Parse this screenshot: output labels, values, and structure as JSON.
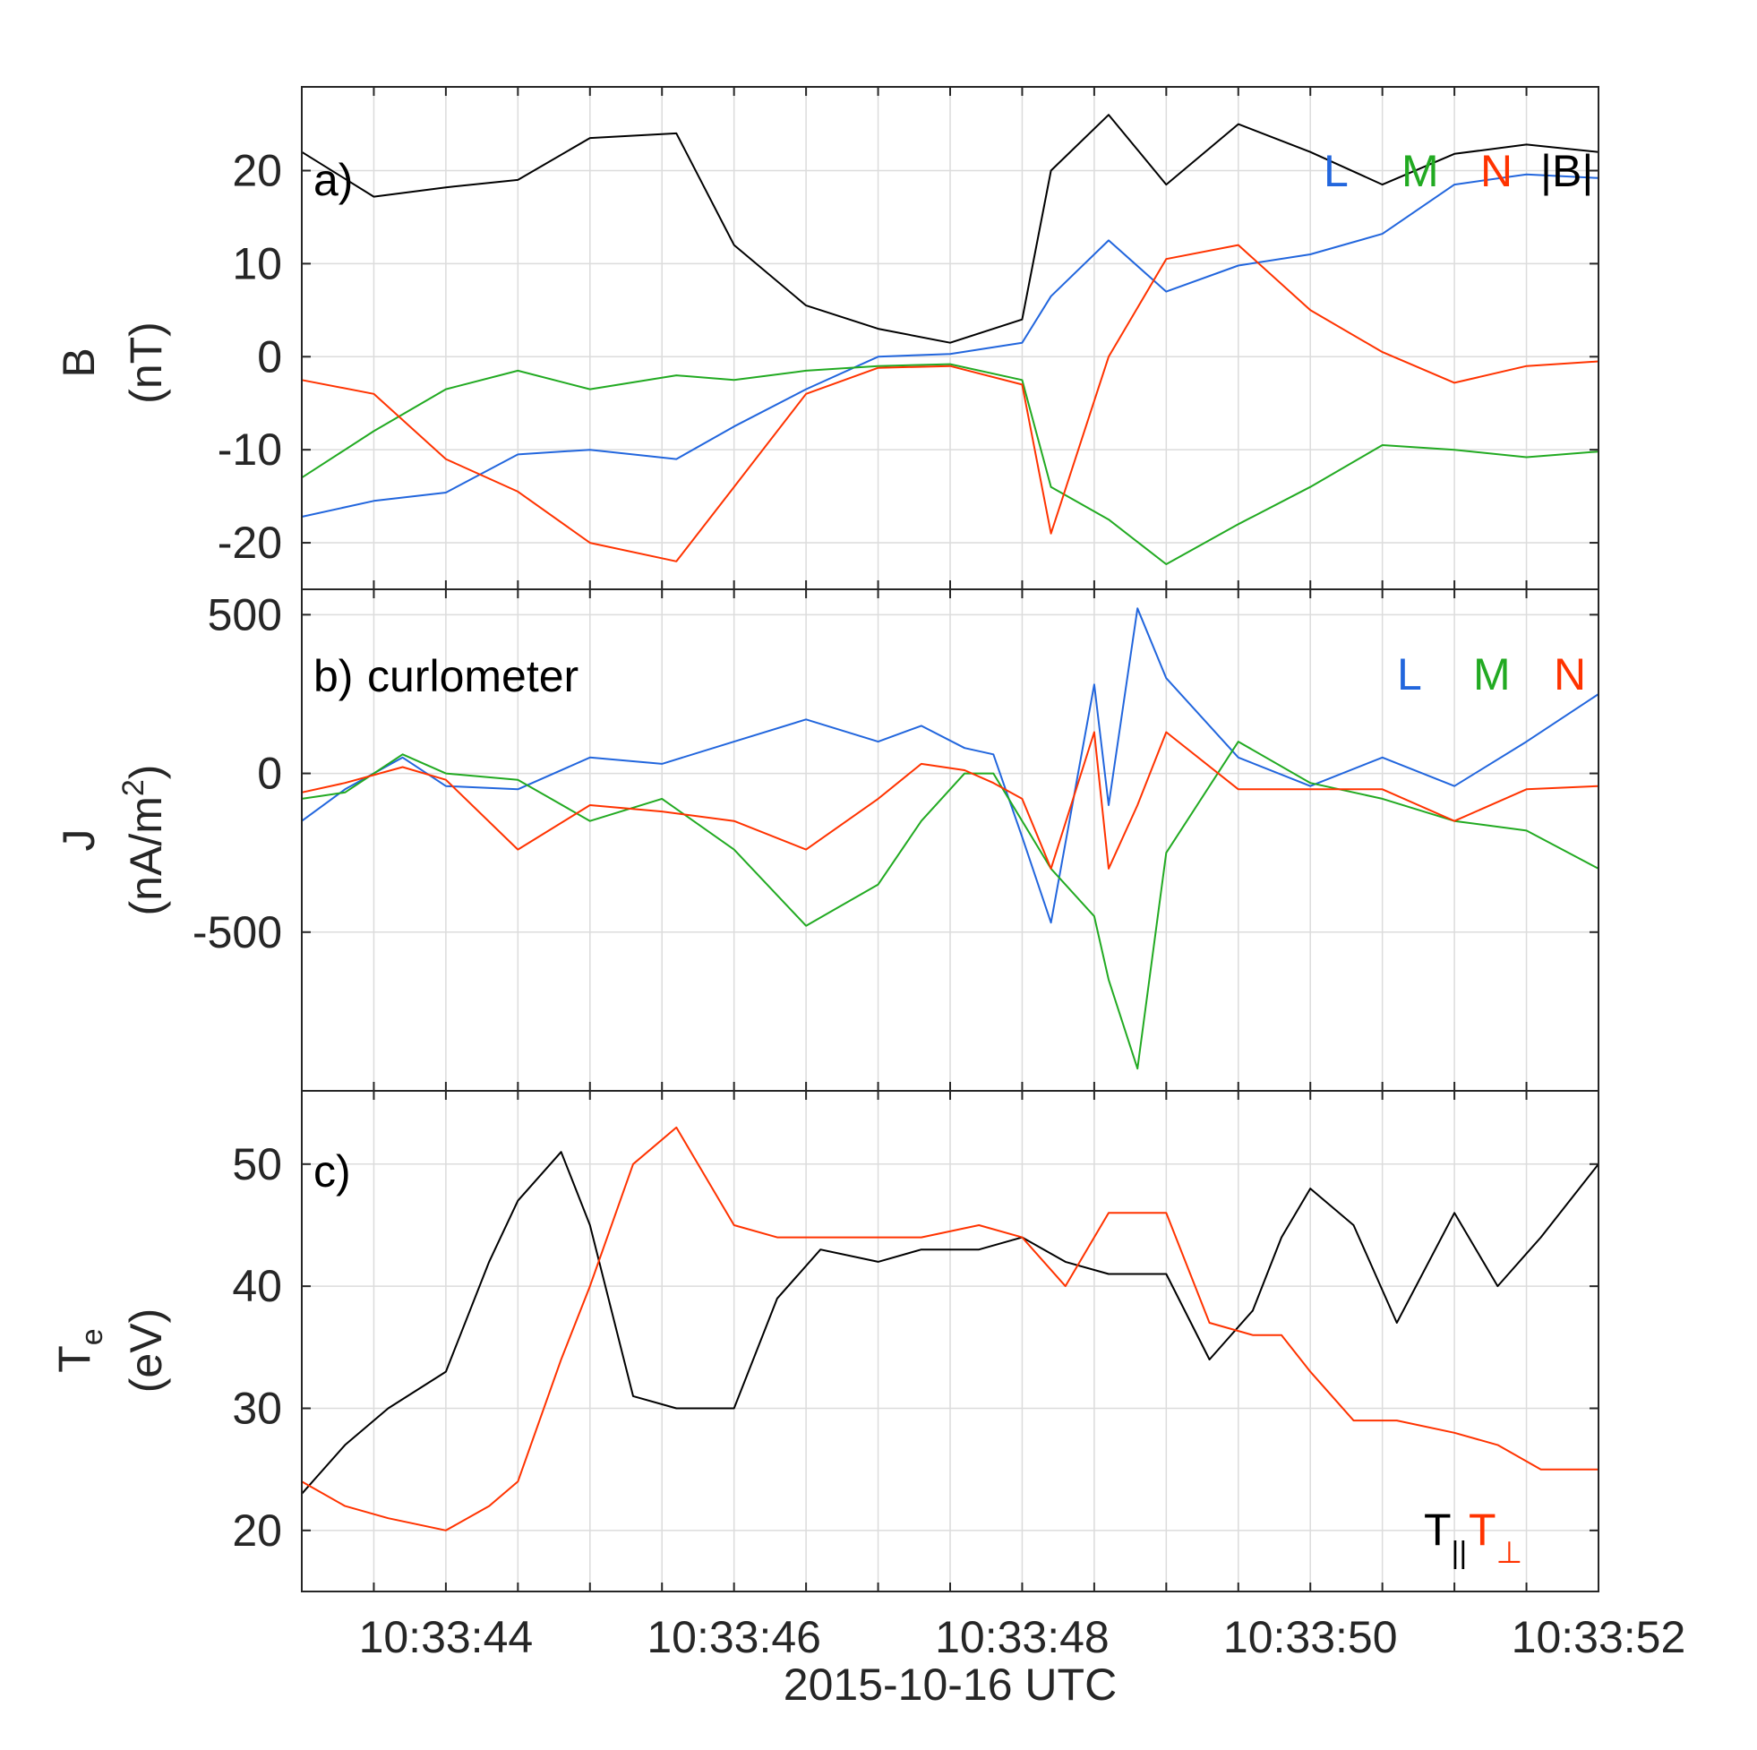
{
  "chart_data": [
    {
      "type": "line",
      "panel_label": "a)",
      "ylabel": "B",
      "yunit": "(nT)",
      "xlim": [
        "10:33:43.000",
        "10:33:52.000"
      ],
      "ylim": [
        -25,
        29
      ],
      "yticks": [
        -20,
        -10,
        0,
        10,
        20
      ],
      "ytick_labels": [
        "-20",
        "-10",
        "0",
        "10",
        "20"
      ],
      "grid": true,
      "legend_placement": "top-right",
      "series": [
        {
          "name": "L",
          "color": "#2266dd",
          "x": [
            "10:33:43.000",
            "10:33:43.500",
            "10:33:44.000",
            "10:33:44.500",
            "10:33:45.000",
            "10:33:45.600",
            "10:33:46.000",
            "10:33:46.500",
            "10:33:47.000",
            "10:33:47.500",
            "10:33:48.000",
            "10:33:48.200",
            "10:33:48.600",
            "10:33:49.000",
            "10:33:49.500",
            "10:33:50.000",
            "10:33:50.500",
            "10:33:51.000",
            "10:33:51.500",
            "10:33:52.000"
          ],
          "y": [
            -17.2,
            -15.5,
            -14.6,
            -10.5,
            -10.0,
            -11.0,
            -7.5,
            -3.5,
            0.0,
            0.3,
            1.5,
            6.5,
            12.5,
            7.0,
            9.8,
            11.0,
            13.2,
            18.5,
            19.6,
            19.2
          ]
        },
        {
          "name": "M",
          "color": "#22aa22",
          "x": [
            "10:33:43.000",
            "10:33:43.500",
            "10:33:44.000",
            "10:33:44.500",
            "10:33:45.000",
            "10:33:45.600",
            "10:33:46.000",
            "10:33:46.500",
            "10:33:47.000",
            "10:33:47.500",
            "10:33:48.000",
            "10:33:48.200",
            "10:33:48.600",
            "10:33:49.000",
            "10:33:49.500",
            "10:33:50.000",
            "10:33:50.500",
            "10:33:51.000",
            "10:33:51.500",
            "10:33:52.000"
          ],
          "y": [
            -13.0,
            -8.0,
            -3.5,
            -1.5,
            -3.5,
            -2.0,
            -2.5,
            -1.5,
            -1.0,
            -0.8,
            -2.5,
            -14.0,
            -17.5,
            -22.3,
            -18.0,
            -14.0,
            -9.5,
            -10.0,
            -10.8,
            -10.2
          ]
        },
        {
          "name": "N",
          "color": "#ff3300",
          "x": [
            "10:33:43.000",
            "10:33:43.500",
            "10:33:44.000",
            "10:33:44.500",
            "10:33:45.000",
            "10:33:45.600",
            "10:33:46.000",
            "10:33:46.500",
            "10:33:47.000",
            "10:33:47.500",
            "10:33:48.000",
            "10:33:48.200",
            "10:33:48.600",
            "10:33:49.000",
            "10:33:49.500",
            "10:33:50.000",
            "10:33:50.500",
            "10:33:51.000",
            "10:33:51.500",
            "10:33:52.000"
          ],
          "y": [
            -2.5,
            -4.0,
            -11.0,
            -14.5,
            -20.0,
            -22.0,
            -14.0,
            -4.0,
            -1.2,
            -1.0,
            -3.0,
            -19.0,
            0.0,
            10.5,
            12.0,
            5.0,
            0.5,
            -2.8,
            -1.0,
            -0.5
          ]
        },
        {
          "name": "|B|",
          "color": "#000000",
          "x": [
            "10:33:43.000",
            "10:33:43.500",
            "10:33:44.000",
            "10:33:44.500",
            "10:33:45.000",
            "10:33:45.600",
            "10:33:46.000",
            "10:33:46.500",
            "10:33:47.000",
            "10:33:47.500",
            "10:33:48.000",
            "10:33:48.200",
            "10:33:48.600",
            "10:33:49.000",
            "10:33:49.500",
            "10:33:50.000",
            "10:33:50.500",
            "10:33:51.000",
            "10:33:51.500",
            "10:33:52.000"
          ],
          "y": [
            22.0,
            17.2,
            18.2,
            19.0,
            23.5,
            24.0,
            12.0,
            5.5,
            3.0,
            1.5,
            4.0,
            20.0,
            26.0,
            18.5,
            25.0,
            22.0,
            18.5,
            21.8,
            22.8,
            22.0
          ]
        }
      ]
    },
    {
      "type": "line",
      "panel_label": "b)",
      "annotation": "curlometer",
      "ylabel": "J",
      "yunit": "(nA/m",
      "yunit_exp": "2",
      "yunit_close": ")",
      "xlim": [
        "10:33:43.000",
        "10:33:52.000"
      ],
      "ylim": [
        -1000,
        580
      ],
      "yticks": [
        -500,
        0,
        500
      ],
      "ytick_labels": [
        "-500",
        "0",
        "500"
      ],
      "grid": true,
      "legend_placement": "top-right",
      "series": [
        {
          "name": "L",
          "color": "#2266dd",
          "x": [
            "10:33:43.000",
            "10:33:43.300",
            "10:33:43.700",
            "10:33:44.000",
            "10:33:44.500",
            "10:33:45.000",
            "10:33:45.500",
            "10:33:46.000",
            "10:33:46.500",
            "10:33:47.000",
            "10:33:47.300",
            "10:33:47.600",
            "10:33:47.800",
            "10:33:48.000",
            "10:33:48.200",
            "10:33:48.500",
            "10:33:48.600",
            "10:33:48.800",
            "10:33:49.000",
            "10:33:49.500",
            "10:33:50.000",
            "10:33:50.500",
            "10:33:51.000",
            "10:33:51.500",
            "10:33:52.000"
          ],
          "y": [
            -150,
            -50,
            50,
            -40,
            -50,
            50,
            30,
            100,
            170,
            100,
            150,
            80,
            60,
            -200,
            -470,
            280,
            -100,
            520,
            300,
            50,
            -40,
            50,
            -40,
            100,
            250
          ]
        },
        {
          "name": "M",
          "color": "#22aa22",
          "x": [
            "10:33:43.000",
            "10:33:43.300",
            "10:33:43.700",
            "10:33:44.000",
            "10:33:44.500",
            "10:33:45.000",
            "10:33:45.500",
            "10:33:46.000",
            "10:33:46.500",
            "10:33:47.000",
            "10:33:47.300",
            "10:33:47.600",
            "10:33:47.800",
            "10:33:48.000",
            "10:33:48.200",
            "10:33:48.500",
            "10:33:48.600",
            "10:33:48.800",
            "10:33:49.000",
            "10:33:49.500",
            "10:33:50.000",
            "10:33:50.500",
            "10:33:51.000",
            "10:33:51.500",
            "10:33:52.000"
          ],
          "y": [
            -80,
            -60,
            60,
            0,
            -20,
            -150,
            -80,
            -240,
            -480,
            -350,
            -150,
            0,
            0,
            -150,
            -300,
            -450,
            -650,
            -930,
            -250,
            100,
            -30,
            -80,
            -150,
            -180,
            -300
          ]
        },
        {
          "name": "N",
          "color": "#ff3300",
          "x": [
            "10:33:43.000",
            "10:33:43.300",
            "10:33:43.700",
            "10:33:44.000",
            "10:33:44.500",
            "10:33:45.000",
            "10:33:45.500",
            "10:33:46.000",
            "10:33:46.500",
            "10:33:47.000",
            "10:33:47.300",
            "10:33:47.600",
            "10:33:47.800",
            "10:33:48.000",
            "10:33:48.200",
            "10:33:48.500",
            "10:33:48.600",
            "10:33:48.800",
            "10:33:49.000",
            "10:33:49.500",
            "10:33:50.000",
            "10:33:50.500",
            "10:33:51.000",
            "10:33:51.500",
            "10:33:52.000"
          ],
          "y": [
            -60,
            -30,
            20,
            -20,
            -240,
            -100,
            -120,
            -150,
            -240,
            -80,
            30,
            10,
            -30,
            -80,
            -300,
            130,
            -300,
            -100,
            130,
            -50,
            -50,
            -50,
            -150,
            -50,
            -40
          ]
        }
      ]
    },
    {
      "type": "line",
      "panel_label": "c)",
      "ylabel": "T",
      "ylabel_sub": "e",
      "yunit": "(eV)",
      "xlim": [
        "10:33:43.000",
        "10:33:52.000"
      ],
      "ylim": [
        15,
        56
      ],
      "yticks": [
        20,
        30,
        40,
        50
      ],
      "ytick_labels": [
        "20",
        "30",
        "40",
        "50"
      ],
      "xticks": [
        "10:33:44.000",
        "10:33:46.000",
        "10:33:48.000",
        "10:33:50.000",
        "10:33:52.000"
      ],
      "xtick_labels": [
        "10:33:44",
        "10:33:46",
        "10:33:48",
        "10:33:50",
        "10:33:52"
      ],
      "xlabel": "2015-10-16 UTC",
      "grid": true,
      "legend_placement": "bottom-right",
      "series": [
        {
          "name": "T",
          "name_sub": "||",
          "color": "#000000",
          "x": [
            "10:33:43.000",
            "10:33:43.300",
            "10:33:43.600",
            "10:33:44.000",
            "10:33:44.300",
            "10:33:44.500",
            "10:33:44.800",
            "10:33:45.000",
            "10:33:45.300",
            "10:33:45.600",
            "10:33:46.000",
            "10:33:46.300",
            "10:33:46.600",
            "10:33:47.000",
            "10:33:47.300",
            "10:33:47.700",
            "10:33:48.000",
            "10:33:48.300",
            "10:33:48.600",
            "10:33:49.000",
            "10:33:49.300",
            "10:33:49.600",
            "10:33:49.800",
            "10:33:50.000",
            "10:33:50.300",
            "10:33:50.600",
            "10:33:51.000",
            "10:33:51.300",
            "10:33:51.600",
            "10:33:52.000"
          ],
          "y": [
            23,
            27,
            30,
            33,
            42,
            47,
            51,
            45,
            31,
            30,
            30,
            39,
            43,
            42,
            43,
            43,
            44,
            42,
            41,
            41,
            34,
            38,
            44,
            48,
            45,
            37,
            46,
            40,
            44,
            50
          ]
        },
        {
          "name": "T",
          "name_sub": "⊥",
          "color": "#ff3300",
          "x": [
            "10:33:43.000",
            "10:33:43.300",
            "10:33:43.600",
            "10:33:44.000",
            "10:33:44.300",
            "10:33:44.500",
            "10:33:44.800",
            "10:33:45.000",
            "10:33:45.300",
            "10:33:45.600",
            "10:33:46.000",
            "10:33:46.300",
            "10:33:46.600",
            "10:33:47.000",
            "10:33:47.300",
            "10:33:47.700",
            "10:33:48.000",
            "10:33:48.300",
            "10:33:48.600",
            "10:33:49.000",
            "10:33:49.300",
            "10:33:49.600",
            "10:33:49.800",
            "10:33:50.000",
            "10:33:50.300",
            "10:33:50.600",
            "10:33:51.000",
            "10:33:51.300",
            "10:33:51.600",
            "10:33:52.000"
          ],
          "y": [
            24,
            22,
            21,
            20,
            22,
            24,
            34,
            40,
            50,
            53,
            45,
            44,
            44,
            44,
            44,
            45,
            44,
            40,
            46,
            46,
            37,
            36,
            36,
            33,
            29,
            29,
            28,
            27,
            25,
            25
          ]
        }
      ]
    }
  ]
}
